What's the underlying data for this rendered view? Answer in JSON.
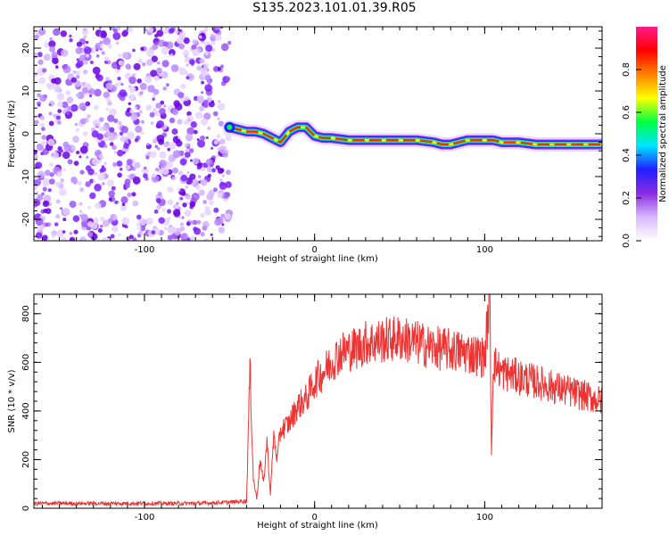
{
  "title": "S135.2023.101.01.39.R05",
  "colors": {
    "noise": "#8a2be2",
    "noise_dark": "#6a00ff",
    "snr_line": "#ee3333",
    "axis": "#000000"
  },
  "chart_data": [
    {
      "type": "heatmap",
      "xlabel": "Height of straight line (km)",
      "ylabel": "Frequency (Hz)",
      "xlim": [
        -165,
        169
      ],
      "ylim": [
        -25,
        25
      ],
      "xticks": [
        -100,
        0,
        100
      ],
      "yticks": [
        -20,
        -10,
        0,
        10,
        20
      ],
      "colorbar": {
        "label": "Normalized spectral amplitude",
        "range": [
          0,
          1
        ],
        "ticks": [
          0.0,
          0.2,
          0.4,
          0.6,
          0.8
        ],
        "tick_labels": [
          "0.0",
          "0.2",
          "0.4",
          "0.6",
          "0.8"
        ],
        "colormap": [
          "#ffffff",
          "#d9b8ff",
          "#8a2be2",
          "#2020ff",
          "#00e5ff",
          "#00ff40",
          "#ffff00",
          "#ff8000",
          "#ff0000",
          "#ff1a8c"
        ]
      },
      "noise_region_x": [
        -165,
        -50
      ],
      "signal_track": {
        "x": [
          -50,
          -45,
          -40,
          -35,
          -30,
          -25,
          -20,
          -15,
          -10,
          -5,
          0,
          5,
          10,
          20,
          30,
          40,
          50,
          60,
          70,
          75,
          80,
          85,
          90,
          95,
          100,
          105,
          110,
          120,
          130,
          140,
          150,
          160,
          169
        ],
        "frequency": [
          1.5,
          1.0,
          0.5,
          0.5,
          0.0,
          -1.0,
          -2.0,
          0.5,
          1.5,
          1.5,
          -0.5,
          -1.0,
          -1.0,
          -1.5,
          -1.5,
          -1.5,
          -1.5,
          -1.5,
          -2.0,
          -2.5,
          -2.5,
          -2.0,
          -1.5,
          -1.5,
          -1.5,
          -1.5,
          -2.0,
          -2.0,
          -2.5,
          -2.5,
          -2.5,
          -2.5,
          -2.5
        ]
      }
    },
    {
      "type": "line",
      "xlabel": "Height of straight line (km)",
      "ylabel": "SNR (10 * v/v)",
      "xlim": [
        -165,
        169
      ],
      "ylim": [
        0,
        880
      ],
      "xticks": [
        -100,
        0,
        100
      ],
      "yticks": [
        0,
        200,
        400,
        600,
        800
      ],
      "series": [
        {
          "x": [
            -165,
            -150,
            -130,
            -110,
            -90,
            -70,
            -50,
            -40,
            -38,
            -36,
            -34,
            -32,
            -30,
            -28,
            -26,
            -24,
            -22,
            -20,
            -15,
            -10,
            -5,
            0,
            5,
            10,
            15,
            20,
            25,
            30,
            40,
            50,
            60,
            70,
            80,
            90,
            100,
            103,
            104,
            105,
            110,
            120,
            130,
            140,
            150,
            160,
            169
          ],
          "values": [
            20,
            20,
            20,
            20,
            20,
            20,
            25,
            30,
            580,
            120,
            40,
            200,
            100,
            280,
            60,
            300,
            200,
            320,
            350,
            420,
            450,
            520,
            560,
            600,
            640,
            650,
            660,
            680,
            690,
            700,
            680,
            660,
            650,
            640,
            620,
            880,
            220,
            600,
            560,
            540,
            520,
            500,
            480,
            460,
            440
          ]
        }
      ]
    }
  ]
}
